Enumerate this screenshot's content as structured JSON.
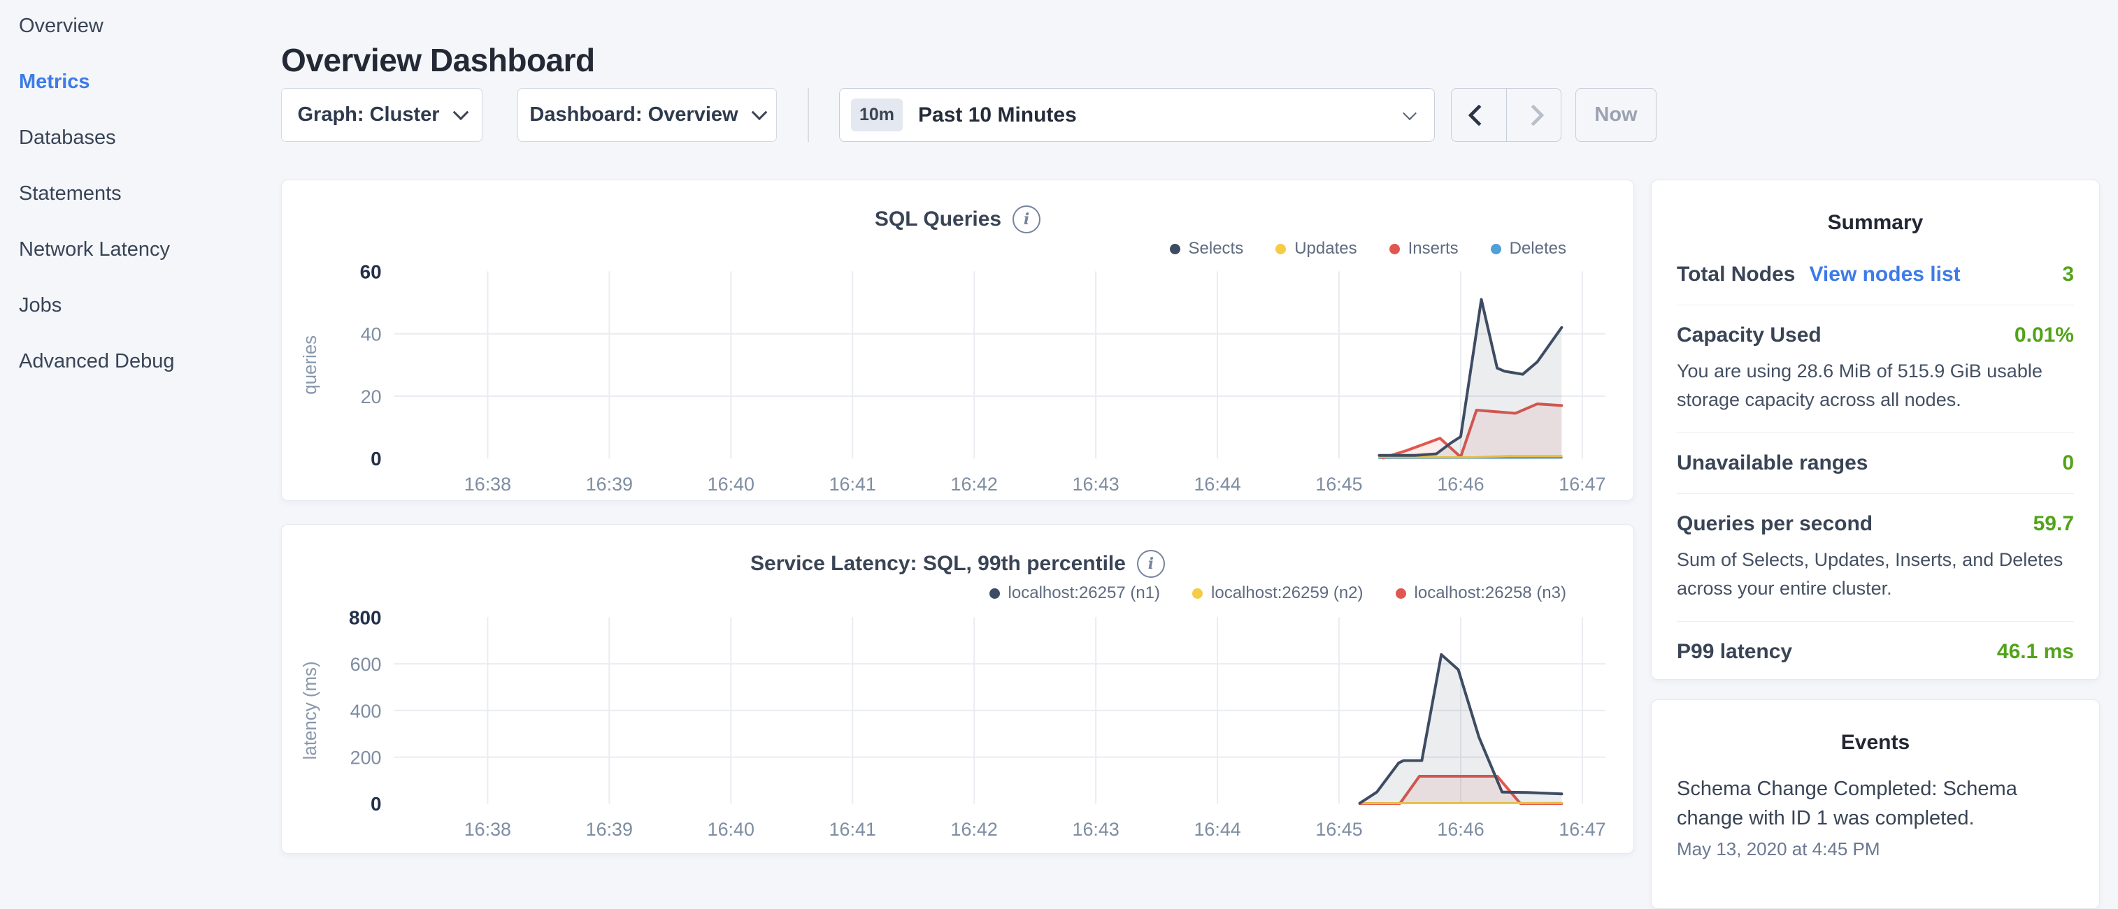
{
  "page": {
    "title": "Overview Dashboard"
  },
  "sidebar": {
    "items": [
      {
        "label": "Overview",
        "active": false
      },
      {
        "label": "Metrics",
        "active": true
      },
      {
        "label": "Databases",
        "active": false
      },
      {
        "label": "Statements",
        "active": false
      },
      {
        "label": "Network Latency",
        "active": false
      },
      {
        "label": "Jobs",
        "active": false
      },
      {
        "label": "Advanced Debug",
        "active": false
      }
    ]
  },
  "toolbar": {
    "graph_dropdown": "Graph: Cluster",
    "dashboard_dropdown": "Dashboard: Overview",
    "time_badge": "10m",
    "time_label": "Past 10 Minutes",
    "now_button": "Now"
  },
  "colors": {
    "accent_blue": "#3d7be8",
    "good_green": "#52a31a",
    "navy_series": "#3e4c63",
    "red_series": "#e1574f",
    "yellow_series": "#f6cb45",
    "blue_series": "#4f9fd8",
    "background": "#f4f6fa"
  },
  "summary": {
    "title": "Summary",
    "rows": [
      {
        "label": "Total Nodes",
        "link": "View nodes list",
        "value": "3"
      },
      {
        "label": "Capacity Used",
        "value": "0.01%",
        "subtext": "You are using 28.6 MiB of 515.9 GiB usable storage capacity across all nodes."
      },
      {
        "label": "Unavailable ranges",
        "value": "0"
      },
      {
        "label": "Queries per second",
        "value": "59.7",
        "subtext": "Sum of Selects, Updates, Inserts, and Deletes across your entire cluster."
      },
      {
        "label": "P99 latency",
        "value": "46.1 ms"
      }
    ]
  },
  "events": {
    "title": "Events",
    "items": [
      {
        "message": "Schema Change Completed: Schema change with ID 1 was completed.",
        "timestamp": "May 13, 2020 at 4:45 PM"
      }
    ]
  },
  "chart_data": [
    {
      "type": "area",
      "title": "SQL Queries",
      "ylabel": "queries",
      "ylim": [
        0,
        60
      ],
      "yticks": [
        0,
        20,
        40,
        60
      ],
      "ygrid": [
        20,
        40
      ],
      "xlim": [
        37.23,
        47.19
      ],
      "xticks": {
        "values": [
          38,
          39,
          40,
          41,
          42,
          43,
          44,
          45,
          46,
          47
        ],
        "labels": [
          "16:38",
          "16:39",
          "16:40",
          "16:41",
          "16:42",
          "16:43",
          "16:44",
          "16:45",
          "16:46",
          "16:47"
        ]
      },
      "grid": true,
      "legend_position": "top-right",
      "series": [
        {
          "name": "Selects",
          "color": "#3e4c63",
          "fill": "rgba(62,76,99,0.10)",
          "width": 4,
          "points": [
            [
              45.33,
              1
            ],
            [
              45.62,
              1
            ],
            [
              45.8,
              1.5
            ],
            [
              45.92,
              5
            ],
            [
              46.0,
              7
            ],
            [
              46.17,
              51
            ],
            [
              46.3,
              29
            ],
            [
              46.36,
              28
            ],
            [
              46.51,
              27
            ],
            [
              46.63,
              31
            ],
            [
              46.83,
              42
            ]
          ]
        },
        {
          "name": "Updates",
          "color": "#f6cb45",
          "fill": "rgba(246,203,69,0.10)",
          "width": 3,
          "points": [
            [
              45.33,
              0.4
            ],
            [
              46.1,
              0.4
            ],
            [
              46.4,
              0.8
            ],
            [
              46.83,
              0.8
            ]
          ]
        },
        {
          "name": "Inserts",
          "color": "#e1574f",
          "fill": "rgba(225,87,79,0.10)",
          "width": 4,
          "points": [
            [
              45.36,
              0.2
            ],
            [
              45.55,
              2.5
            ],
            [
              45.83,
              6.5
            ],
            [
              46.0,
              0.5
            ],
            [
              46.13,
              15.5
            ],
            [
              46.3,
              15
            ],
            [
              46.45,
              14.5
            ],
            [
              46.63,
              17.5
            ],
            [
              46.83,
              17
            ]
          ]
        },
        {
          "name": "Deletes",
          "color": "#4f9fd8",
          "fill": "rgba(79,159,216,0.10)",
          "width": 3,
          "points": [
            [
              45.33,
              0.2
            ],
            [
              46.83,
              0.3
            ]
          ]
        }
      ]
    },
    {
      "type": "area",
      "title": "Service Latency: SQL, 99th percentile",
      "ylabel": "latency (ms)",
      "ylim": [
        0,
        800
      ],
      "yticks": [
        0,
        200,
        400,
        600,
        800
      ],
      "ygrid": [
        200,
        400,
        600
      ],
      "xlim": [
        37.23,
        47.19
      ],
      "xticks": {
        "values": [
          38,
          39,
          40,
          41,
          42,
          43,
          44,
          45,
          46,
          47
        ],
        "labels": [
          "16:38",
          "16:39",
          "16:40",
          "16:41",
          "16:42",
          "16:43",
          "16:44",
          "16:45",
          "16:46",
          "16:47"
        ]
      },
      "grid": true,
      "legend_position": "top-right",
      "series": [
        {
          "name": "localhost:26257 (n1)",
          "color": "#3e4c63",
          "fill": "rgba(62,76,99,0.10)",
          "width": 4,
          "points": [
            [
              45.17,
              2
            ],
            [
              45.31,
              50
            ],
            [
              45.49,
              175
            ],
            [
              45.53,
              185
            ],
            [
              45.68,
              185
            ],
            [
              45.84,
              640
            ],
            [
              45.98,
              575
            ],
            [
              46.15,
              285
            ],
            [
              46.34,
              50
            ],
            [
              46.55,
              48
            ],
            [
              46.83,
              42
            ]
          ]
        },
        {
          "name": "localhost:26259 (n2)",
          "color": "#f6cb45",
          "fill": "rgba(246,203,69,0.10)",
          "width": 3,
          "points": [
            [
              45.17,
              2
            ],
            [
              46.83,
              3
            ]
          ]
        },
        {
          "name": "localhost:26258 (n3)",
          "color": "#e1574f",
          "fill": "rgba(225,87,79,0.10)",
          "width": 4,
          "points": [
            [
              45.17,
              1
            ],
            [
              45.5,
              1
            ],
            [
              45.66,
              118
            ],
            [
              46.3,
              118
            ],
            [
              46.49,
              1
            ],
            [
              46.83,
              1
            ]
          ]
        }
      ]
    }
  ]
}
